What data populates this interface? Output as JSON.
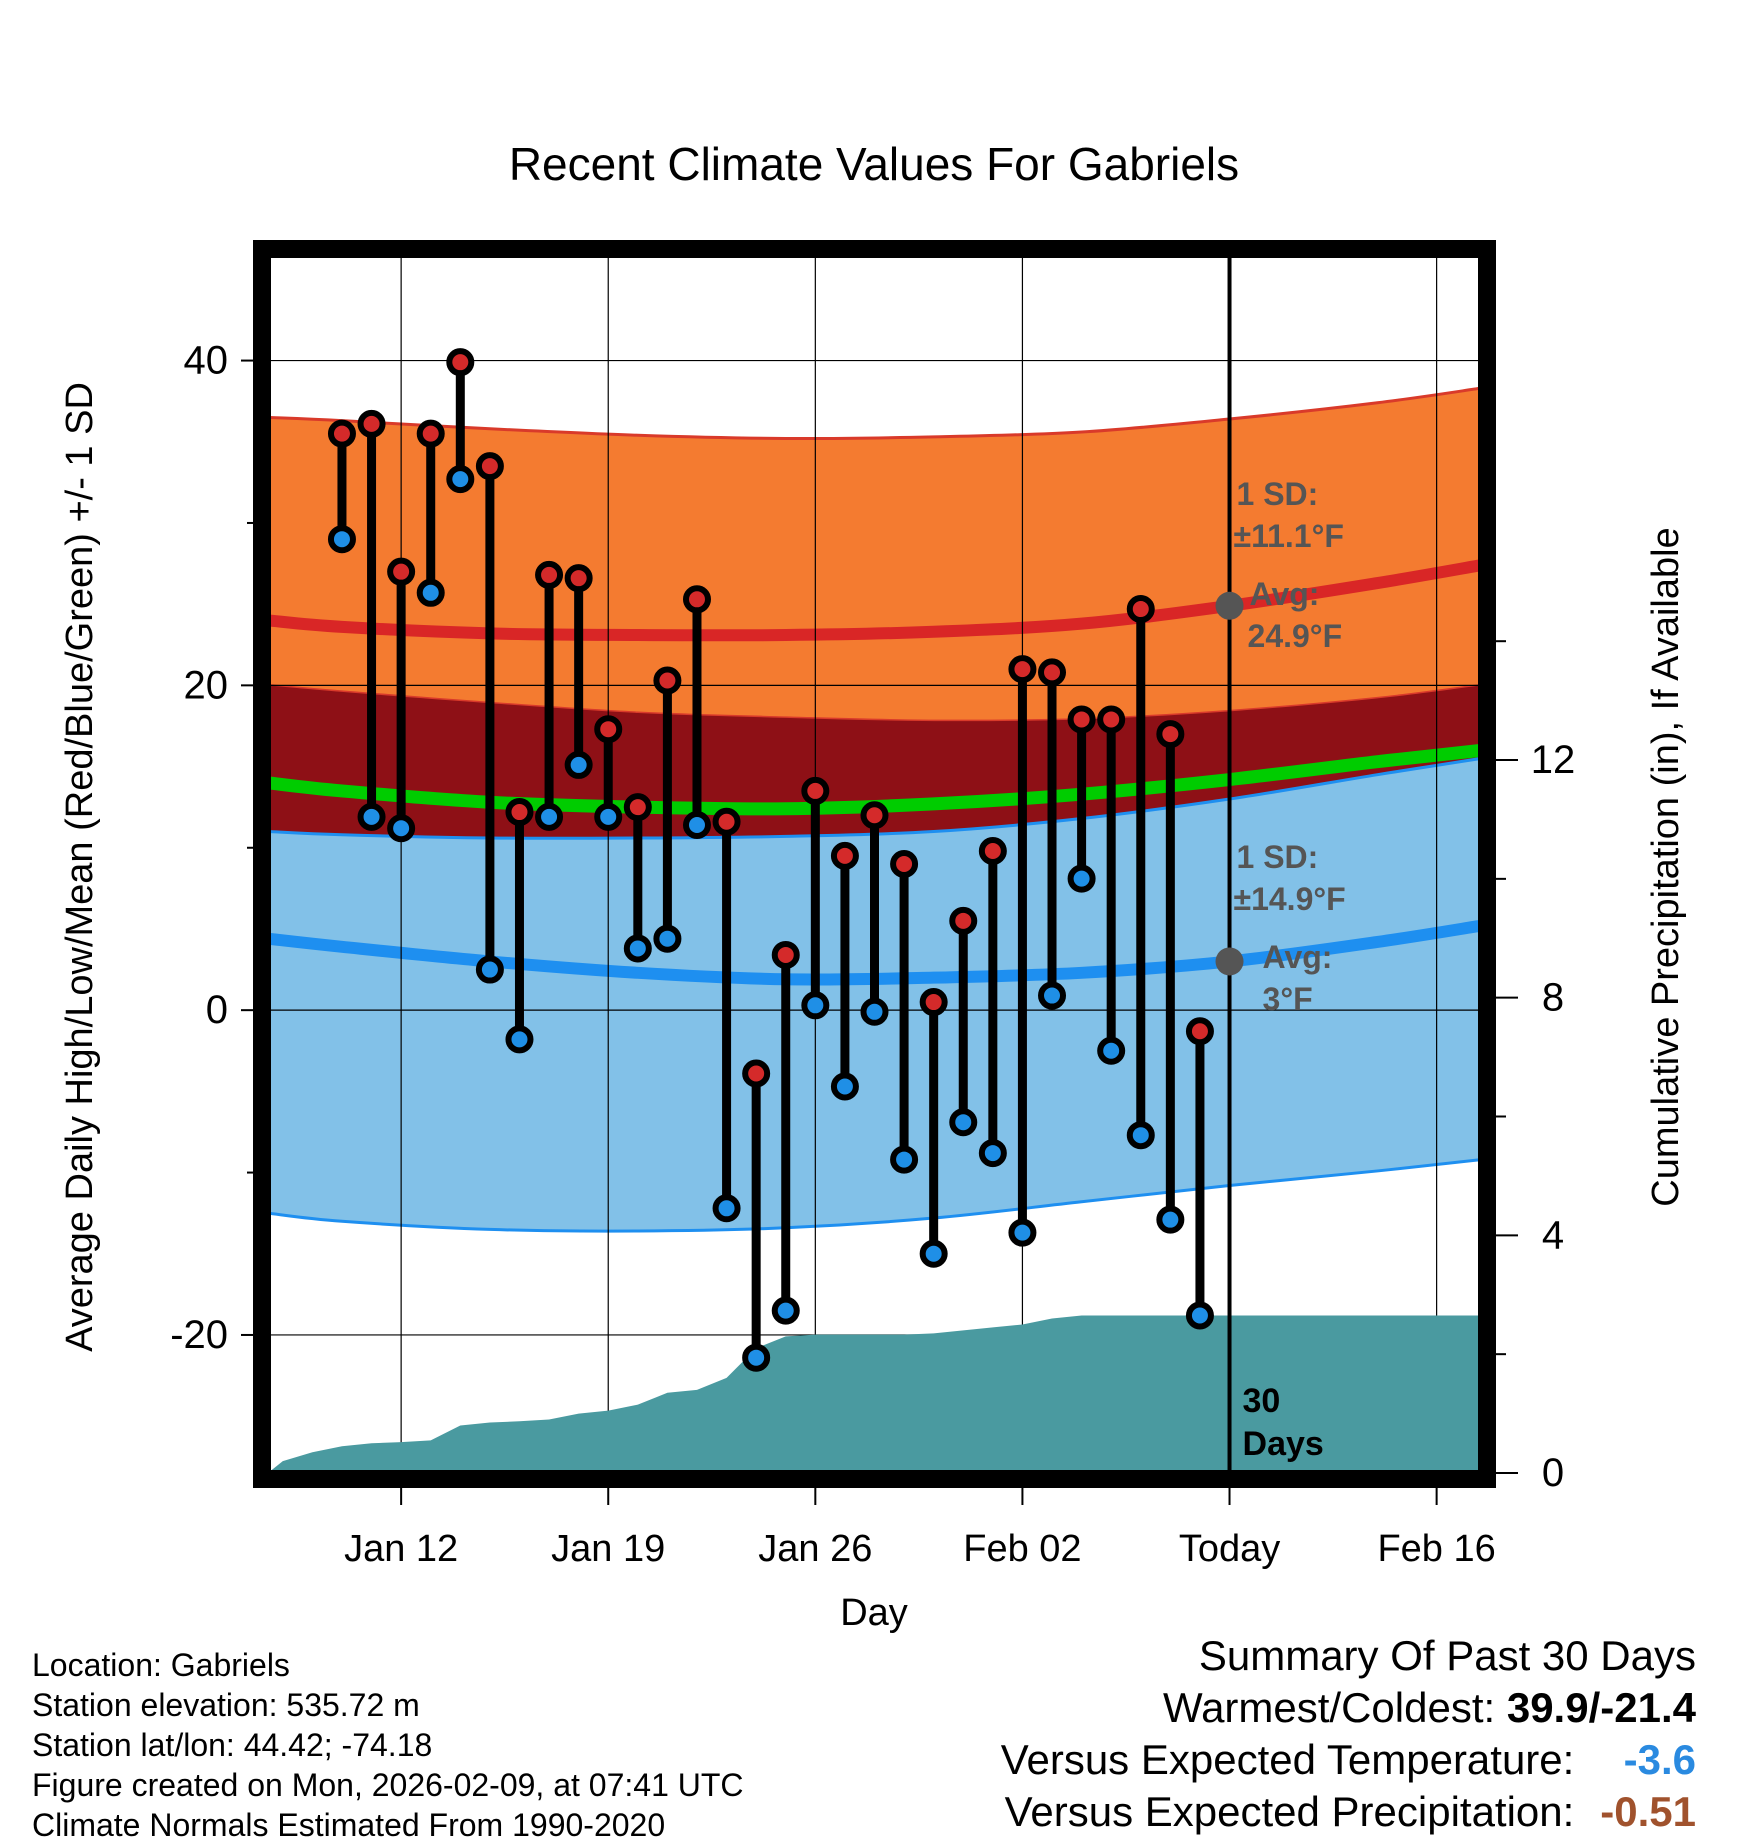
{
  "chart_data": {
    "type": "line",
    "title": "Recent Climate Values For Gabriels",
    "xlabel": "Day",
    "ylabel": "Average Daily High/Low/Mean (Red/Blue/Green) +/- 1 SD",
    "y2label": "Cumulative Precipitation (in), If Available",
    "ylim": [
      -28.5,
      46.5
    ],
    "y2lim": [
      0,
      20.5
    ],
    "x_tick_labels": [
      "Jan 12",
      "Jan 19",
      "Jan 26",
      "Feb 02",
      "Today",
      "Feb 16"
    ],
    "x_tick_days": [
      2,
      9,
      16,
      23,
      30,
      37
    ],
    "y_ticks": [
      -20,
      0,
      20,
      40
    ],
    "y2_ticks": [
      0,
      4,
      8,
      12
    ],
    "today_day": 30,
    "days_label": [
      "30",
      "Days"
    ],
    "daily": {
      "days": [
        0,
        1,
        2,
        3,
        4,
        5,
        6,
        7,
        8,
        9,
        10,
        11,
        12,
        13,
        14,
        15,
        16,
        17,
        18,
        19,
        20,
        21,
        22,
        23,
        24,
        25,
        26,
        27,
        28,
        29
      ],
      "high": [
        35.5,
        36.1,
        27.0,
        35.5,
        39.9,
        33.5,
        12.2,
        26.8,
        26.6,
        17.3,
        12.5,
        20.3,
        25.3,
        11.6,
        -3.9,
        3.4,
        13.5,
        9.5,
        12.0,
        9.0,
        0.5,
        5.5,
        9.8,
        21.0,
        20.8,
        17.9,
        17.9,
        24.7,
        17.0,
        -1.3
      ],
      "low": [
        29.0,
        11.9,
        11.2,
        25.7,
        32.7,
        2.5,
        -1.8,
        11.9,
        15.1,
        11.9,
        3.8,
        4.4,
        11.4,
        -12.2,
        -21.4,
        -18.5,
        0.3,
        -4.7,
        -0.1,
        -9.2,
        -15.0,
        -6.9,
        -8.8,
        -13.7,
        0.9,
        8.1,
        -2.5,
        -7.7,
        -12.9,
        -18.8
      ]
    },
    "normals": {
      "days": [
        -2.5,
        0,
        5,
        10,
        15,
        20,
        25,
        30,
        35,
        38.5
      ],
      "high_avg": [
        24.0,
        23.6,
        23.2,
        23.1,
        23.1,
        23.3,
        23.8,
        24.9,
        26.3,
        27.4
      ],
      "high_upper": [
        36.5,
        36.3,
        35.8,
        35.4,
        35.2,
        35.3,
        35.6,
        36.4,
        37.4,
        38.3
      ],
      "high_lower": [
        20.0,
        19.6,
        18.9,
        18.3,
        18.0,
        17.8,
        17.9,
        18.4,
        19.2,
        20.0
      ],
      "mean_avg": [
        14.0,
        13.5,
        12.8,
        12.5,
        12.4,
        12.7,
        13.3,
        14.2,
        15.3,
        16.0
      ],
      "low_avg": [
        4.4,
        3.9,
        3.0,
        2.3,
        1.9,
        2.0,
        2.3,
        3.0,
        4.2,
        5.2
      ],
      "low_upper": [
        11.0,
        10.8,
        10.6,
        10.6,
        10.7,
        11.0,
        11.8,
        13.0,
        14.5,
        15.5
      ],
      "low_lower": [
        -12.5,
        -13.0,
        -13.5,
        -13.6,
        -13.4,
        -12.8,
        -11.8,
        -10.8,
        -9.9,
        -9.2
      ]
    },
    "precip": {
      "days": [
        -2.5,
        -2,
        -1,
        0,
        1,
        2,
        3,
        4,
        5,
        6,
        7,
        8,
        9,
        10,
        11,
        12,
        13,
        14,
        15,
        16,
        17,
        18,
        19,
        20,
        21,
        22,
        23,
        24,
        25,
        26,
        27,
        28,
        29,
        30,
        31,
        32,
        33,
        34,
        35,
        36,
        37,
        38,
        38.5
      ],
      "values": [
        0,
        0.2,
        0.35,
        0.45,
        0.5,
        0.52,
        0.55,
        0.8,
        0.85,
        0.87,
        0.9,
        1.0,
        1.05,
        1.15,
        1.35,
        1.4,
        1.6,
        2.1,
        2.3,
        2.33,
        2.33,
        2.33,
        2.33,
        2.35,
        2.4,
        2.45,
        2.5,
        2.6,
        2.65,
        2.65,
        2.65,
        2.65,
        2.65,
        2.65,
        2.65,
        2.65,
        2.65,
        2.65,
        2.65,
        2.65,
        2.65,
        2.65,
        2.65
      ]
    },
    "annotations": {
      "high_sd": "1 SD:",
      "high_sd_value": "±11.1°F",
      "high_avg_label": "Avg:",
      "high_avg_value": "24.9°F",
      "low_sd": "1 SD:",
      "low_sd_value": "±14.9°F",
      "low_avg_label": "Avg:",
      "low_avg_value": "3°F"
    },
    "colors": {
      "high_band": "#f47b30",
      "high_avg": "#d92626",
      "mid_band": "#8e1016",
      "mean_line": "#00cc00",
      "low_band": "#82c1e8",
      "low_avg": "#1e8ff0",
      "precip": "#4a9aa0",
      "high_dot": "#d42a2a",
      "low_dot": "#1f8fe6",
      "avg_marker": "#555555"
    }
  },
  "footer": {
    "location": "Location: Gabriels",
    "elevation": "Station elevation: 535.72 m",
    "latlon": "Station lat/lon: 44.42; -74.18",
    "created": "Figure created on Mon, 2026-02-09, at 07:41 UTC",
    "normals": "Climate Normals Estimated From 1990-2020"
  },
  "summary": {
    "title": "Summary Of Past 30 Days",
    "warmest_label": "Warmest/Coldest:",
    "warmest_value": "39.9/-21.4",
    "temp_label": "Versus Expected Temperature:",
    "temp_value": "-3.6",
    "precip_label": "Versus Expected Precipitation:",
    "precip_value": "-0.51"
  }
}
